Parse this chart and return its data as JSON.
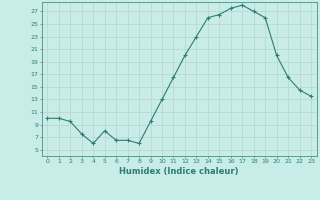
{
  "x": [
    0,
    1,
    2,
    3,
    4,
    5,
    6,
    7,
    8,
    9,
    10,
    11,
    12,
    13,
    14,
    15,
    16,
    17,
    18,
    19,
    20,
    21,
    22,
    23
  ],
  "y": [
    10,
    10,
    9.5,
    7.5,
    6,
    8,
    6.5,
    6.5,
    6,
    9.5,
    13,
    16.5,
    20,
    23,
    26,
    26.5,
    27.5,
    28,
    27,
    26,
    20,
    16.5,
    14.5,
    13.5
  ],
  "xlabel": "Humidex (Indice chaleur)",
  "xlim": [
    -0.5,
    23.5
  ],
  "ylim": [
    4,
    28.5
  ],
  "yticks": [
    5,
    7,
    9,
    11,
    13,
    15,
    17,
    19,
    21,
    23,
    25,
    27
  ],
  "xticks": [
    0,
    1,
    2,
    3,
    4,
    5,
    6,
    7,
    8,
    9,
    10,
    11,
    12,
    13,
    14,
    15,
    16,
    17,
    18,
    19,
    20,
    21,
    22,
    23
  ],
  "line_color": "#2e7d6e",
  "bg_color": "#c8ece8",
  "grid_color": "#b8d4d0",
  "title_color": "#2e7d6e",
  "spine_color": "#4a9080"
}
